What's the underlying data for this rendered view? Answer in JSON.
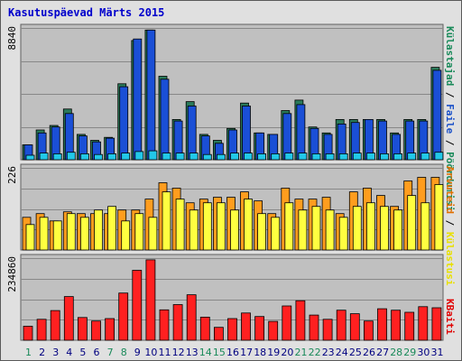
{
  "title": "Kasutuspäevad Märts 2015",
  "colors": {
    "kylastajad": "#2a7a5a",
    "leheloogid": "#1a4fd6",
    "failid": "#22c8e8",
    "kylastused": "#ff9d1e",
    "arvutid": "#ffff40",
    "kbaidid": "#ff2020",
    "label_blue": "#1a50c8",
    "label_green": "#1a8a5a",
    "label_orange": "#e07000",
    "label_yellow": "#e8e000",
    "label_red": "#e00000",
    "weekend_day": "#1a8a5a",
    "weekday_day": "#000080"
  },
  "chart_data": {
    "type": "bar",
    "title": "Kasutuspäevad Märts 2015",
    "categories": [
      "1",
      "2",
      "3",
      "4",
      "5",
      "6",
      "7",
      "8",
      "9",
      "10",
      "11",
      "12",
      "13",
      "14",
      "15",
      "16",
      "17",
      "18",
      "19",
      "20",
      "21",
      "22",
      "23",
      "24",
      "25",
      "26",
      "27",
      "28",
      "29",
      "30",
      "31"
    ],
    "weekend_days": [
      "1",
      "7",
      "8",
      "14",
      "15",
      "21",
      "22",
      "28",
      "29"
    ],
    "panels": [
      {
        "ymax_label": "8840",
        "ylim": [
          0,
          8840
        ],
        "legend": [
          "Külastajad",
          "Faile",
          "Pöördumisi"
        ],
        "series": [
          {
            "key": "kylastajad",
            "values": [
              1000,
              2000,
              2300,
              3400,
              1700,
              1300,
              1500,
              5100,
              8000,
              8700,
              5600,
              2700,
              3900,
              1700,
              1300,
              2100,
              3800,
              1800,
              1700,
              3300,
              4000,
              2200,
              1800,
              2700,
              2700,
              2700,
              2700,
              1800,
              2700,
              2700,
              6200
            ]
          },
          {
            "key": "leheloogid",
            "values": [
              1000,
              1800,
              2200,
              3100,
              1600,
              1200,
              1450,
              4900,
              8100,
              8700,
              5400,
              2600,
              3600,
              1600,
              1100,
              2000,
              3600,
              1800,
              1700,
              3100,
              3700,
              2100,
              1700,
              2400,
              2500,
              2700,
              2600,
              1700,
              2600,
              2600,
              6000
            ]
          },
          {
            "key": "failid",
            "values": [
              300,
              450,
              400,
              500,
              400,
              350,
              400,
              450,
              550,
              600,
              450,
              450,
              450,
              350,
              350,
              450,
              450,
              400,
              400,
              450,
              450,
              400,
              400,
              400,
              450,
              450,
              400,
              400,
              450,
              450,
              500
            ]
          }
        ]
      },
      {
        "ymax_label": "226",
        "ylim": [
          0,
          226
        ],
        "legend": [
          "Arvuteid",
          "Külastusi"
        ],
        "series": [
          {
            "key": "kylastused",
            "values": [
              90,
              100,
              80,
              105,
              100,
              100,
              100,
              110,
              110,
              140,
              185,
              170,
              130,
              140,
              145,
              145,
              160,
              135,
              100,
              170,
              140,
              140,
              145,
              100,
              160,
              170,
              150,
              120,
              190,
              200,
              200
            ]
          },
          {
            "key": "arvutid",
            "values": [
              70,
              90,
              80,
              100,
              90,
              110,
              120,
              80,
              100,
              90,
              160,
              140,
              110,
              130,
              130,
              110,
              140,
              100,
              90,
              130,
              110,
              120,
              110,
              90,
              120,
              130,
              120,
              110,
              150,
              130,
              180
            ]
          }
        ]
      },
      {
        "ymax_label": "234860",
        "ylim": [
          0,
          234860
        ],
        "legend": [
          "KBaiti"
        ],
        "series": [
          {
            "key": "kbaidid",
            "values": [
              40000,
              60000,
              85000,
              125000,
              65000,
              55000,
              62000,
              135000,
              200000,
              230000,
              87000,
              102000,
              130000,
              66000,
              37000,
              62000,
              78000,
              68000,
              54000,
              98000,
              113000,
              72000,
              60000,
              86000,
              76000,
              55000,
              90000,
              86000,
              80000,
              96000,
              93000
            ]
          }
        ]
      }
    ]
  }
}
